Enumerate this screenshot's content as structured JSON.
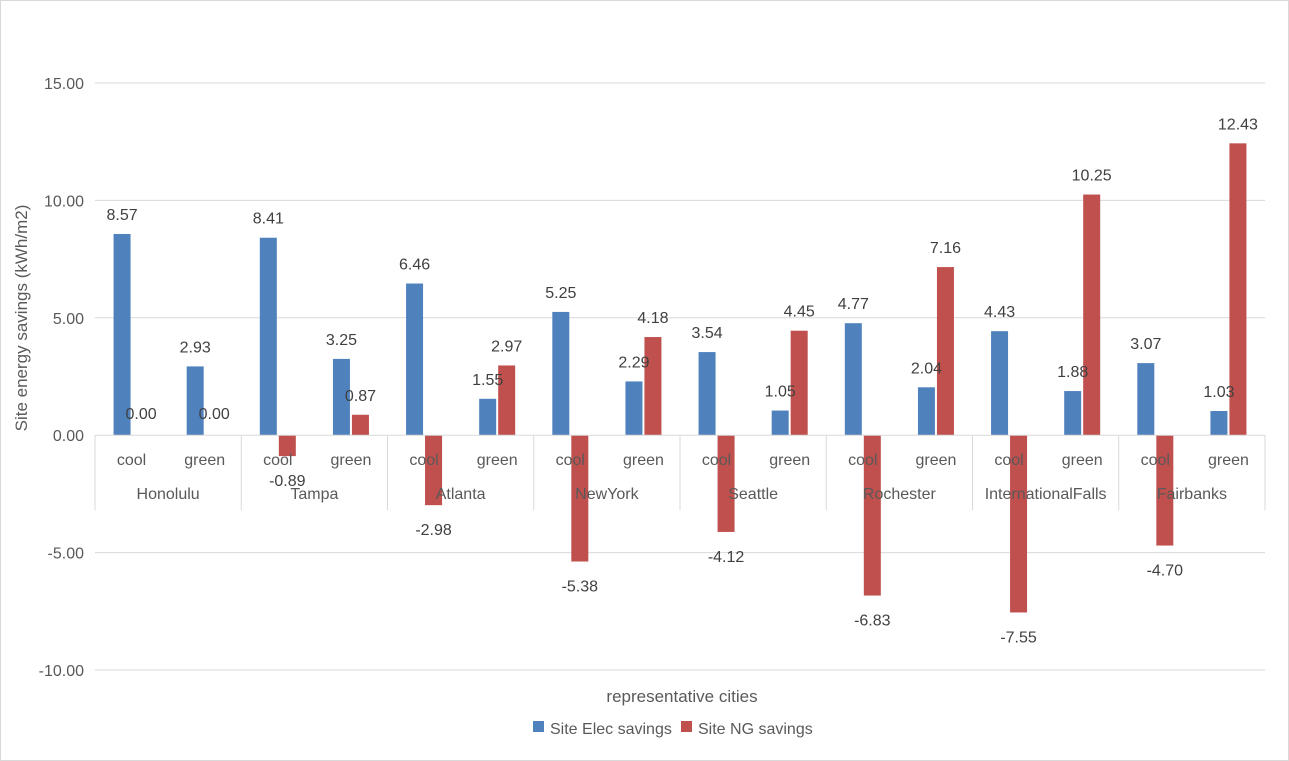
{
  "chart_data": {
    "type": "bar",
    "title": "",
    "xlabel": "representative cities",
    "ylabel": "Site energy savings (kWh/m2)",
    "ylim": [
      -10,
      15
    ],
    "yticks": [
      15,
      10,
      5,
      0,
      -5,
      -10
    ],
    "ytick_labels": [
      "15.00",
      "10.00",
      "5.00",
      "0.00",
      "-5.00",
      "-10.00"
    ],
    "grid": true,
    "legend_position": "bottom",
    "cities": [
      "Honolulu",
      "Tampa",
      "Atlanta",
      "NewYork",
      "Seattle",
      "Rochester",
      "InternationalFalls",
      "Fairbanks"
    ],
    "subcategories": [
      "cool",
      "green"
    ],
    "categories": [
      "Honolulu cool",
      "Honolulu green",
      "Tampa cool",
      "Tampa green",
      "Atlanta cool",
      "Atlanta green",
      "NewYork cool",
      "NewYork green",
      "Seattle cool",
      "Seattle green",
      "Rochester cool",
      "Rochester green",
      "InternationalFalls cool",
      "InternationalFalls green",
      "Fairbanks cool",
      "Fairbanks green"
    ],
    "series": [
      {
        "name": "Site Elec savings",
        "color": "#4f81bd",
        "values": [
          8.57,
          2.93,
          8.41,
          3.25,
          6.46,
          1.55,
          5.25,
          2.29,
          3.54,
          1.05,
          4.77,
          2.04,
          4.43,
          1.88,
          3.07,
          1.03
        ],
        "labels": [
          "8.57",
          "2.93",
          "8.41",
          "3.25",
          "6.46",
          "1.55",
          "5.25",
          "2.29",
          "3.54",
          "1.05",
          "4.77",
          "2.04",
          "4.43",
          "1.88",
          "3.07",
          "1.03"
        ]
      },
      {
        "name": "Site NG savings",
        "color": "#c0504d",
        "values": [
          0.0,
          0.0,
          -0.89,
          0.87,
          -2.98,
          2.97,
          -5.38,
          4.18,
          -4.12,
          4.45,
          -6.83,
          7.16,
          -7.55,
          10.25,
          -4.7,
          12.43
        ],
        "labels": [
          "0.00",
          "0.00",
          "-0.89",
          "0.87",
          "-2.98",
          "2.97",
          "-5.38",
          "4.18",
          "-4.12",
          "4.45",
          "-6.83",
          "7.16",
          "-7.55",
          "10.25",
          "-4.70",
          "12.43"
        ]
      }
    ]
  }
}
